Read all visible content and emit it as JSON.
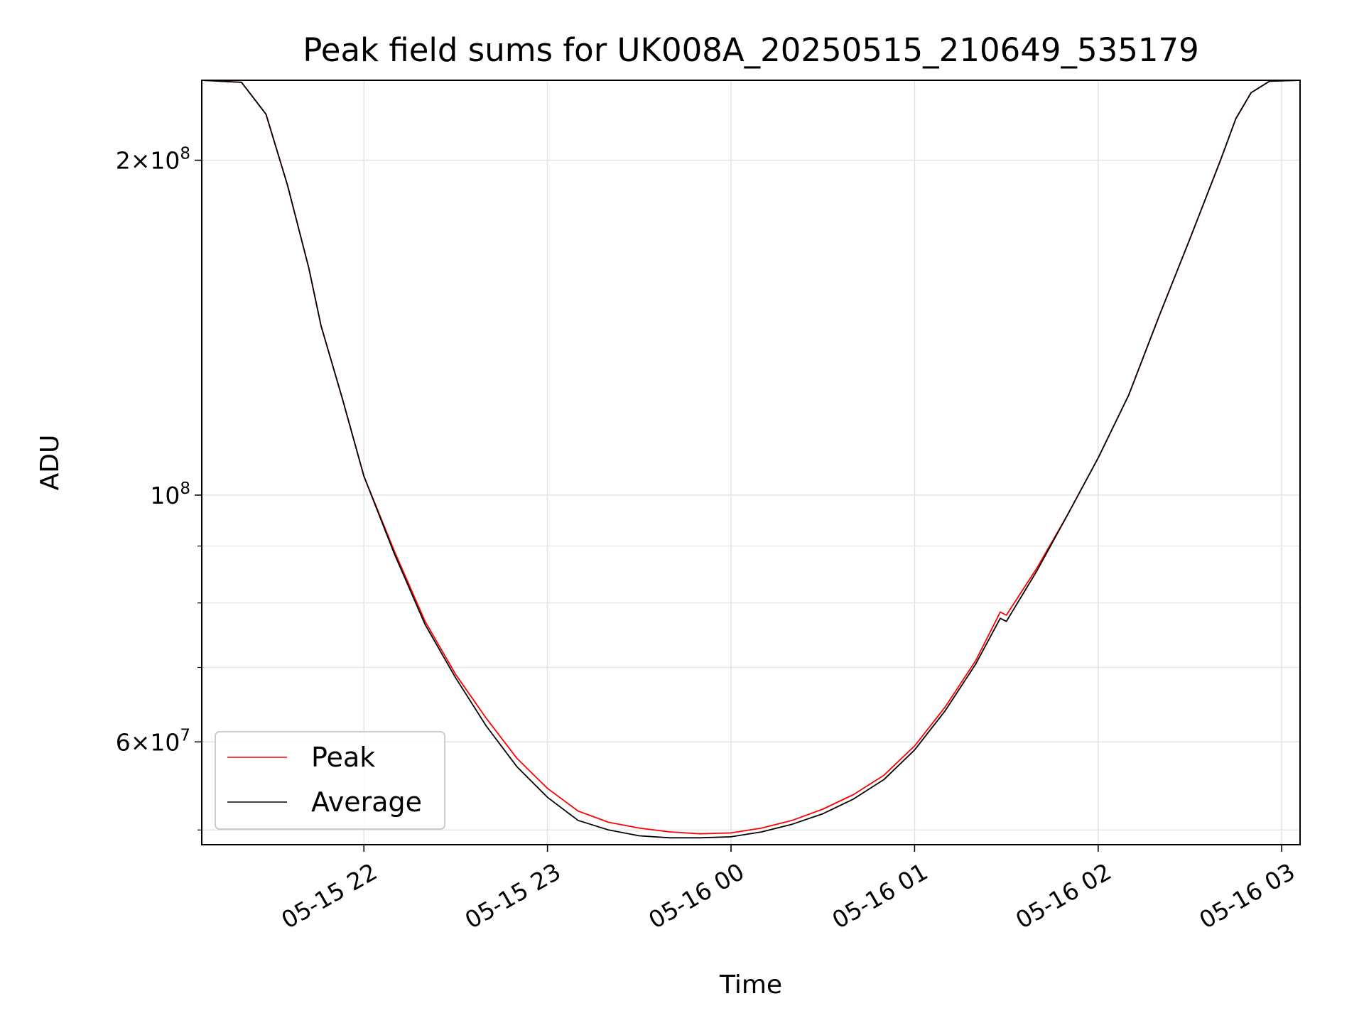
{
  "chart_data": {
    "type": "line",
    "title": "Peak field sums for UK008A_20250515_210649_535179",
    "xlabel": "Time",
    "ylabel": "ADU",
    "y_scale": "log",
    "grid": true,
    "legend_position": "lower-left",
    "xlim": [
      "2025-05-15 21:07",
      "2025-05-16 03:06"
    ],
    "ylim": [
      48500000,
      236000000
    ],
    "x_ticks": [
      {
        "value": "2025-05-15 22:00",
        "label": "05-15 22"
      },
      {
        "value": "2025-05-15 23:00",
        "label": "05-15 23"
      },
      {
        "value": "2025-05-16 00:00",
        "label": "05-16 00"
      },
      {
        "value": "2025-05-16 01:00",
        "label": "05-16 01"
      },
      {
        "value": "2025-05-16 02:00",
        "label": "05-16 02"
      },
      {
        "value": "2025-05-16 03:00",
        "label": "05-16 03"
      }
    ],
    "y_major_ticks": [
      {
        "value": 200000000,
        "mantissa": "2",
        "exponent": "8"
      },
      {
        "value": 100000000,
        "mantissa": "",
        "exponent": "8"
      },
      {
        "value": 60000000,
        "mantissa": "6",
        "exponent": "7"
      }
    ],
    "y_minor_ticks": [
      50000000,
      70000000,
      80000000,
      90000000
    ],
    "series": [
      {
        "name": "Peak",
        "color": "#ff0000",
        "x": [
          "2025-05-15 21:07",
          "2025-05-15 21:20",
          "2025-05-15 21:28",
          "2025-05-15 21:35",
          "2025-05-15 21:42",
          "2025-05-15 21:46",
          "2025-05-15 21:53",
          "2025-05-15 22:00",
          "2025-05-15 22:10",
          "2025-05-15 22:20",
          "2025-05-15 22:30",
          "2025-05-15 22:40",
          "2025-05-15 22:50",
          "2025-05-15 23:00",
          "2025-05-15 23:10",
          "2025-05-15 23:20",
          "2025-05-15 23:30",
          "2025-05-15 23:40",
          "2025-05-15 23:50",
          "2025-05-16 00:00",
          "2025-05-16 00:10",
          "2025-05-16 00:20",
          "2025-05-16 00:30",
          "2025-05-16 00:40",
          "2025-05-16 00:50",
          "2025-05-16 01:00",
          "2025-05-16 01:10",
          "2025-05-16 01:20",
          "2025-05-16 01:28",
          "2025-05-16 01:30",
          "2025-05-16 01:40",
          "2025-05-16 01:50",
          "2025-05-16 02:00",
          "2025-05-16 02:10",
          "2025-05-16 02:20",
          "2025-05-16 02:30",
          "2025-05-16 02:40",
          "2025-05-16 02:45",
          "2025-05-16 02:50",
          "2025-05-16 02:56",
          "2025-05-16 03:06"
        ],
        "values": [
          236000000,
          235000000,
          220000000,
          190000000,
          160000000,
          142000000,
          122000000,
          104000000,
          89000000,
          77000000,
          69000000,
          63000000,
          58000000,
          54500000,
          52000000,
          50800000,
          50200000,
          49800000,
          49600000,
          49700000,
          50200000,
          51000000,
          52200000,
          53800000,
          56000000,
          59500000,
          64500000,
          71000000,
          78500000,
          78000000,
          86000000,
          96000000,
          108000000,
          123000000,
          145000000,
          170000000,
          200000000,
          218000000,
          230000000,
          235500000,
          236000000
        ]
      },
      {
        "name": "Average",
        "color": "#000000",
        "x": [
          "2025-05-15 21:07",
          "2025-05-15 21:20",
          "2025-05-15 21:28",
          "2025-05-15 21:35",
          "2025-05-15 21:42",
          "2025-05-15 21:46",
          "2025-05-15 21:53",
          "2025-05-15 22:00",
          "2025-05-15 22:10",
          "2025-05-15 22:20",
          "2025-05-15 22:30",
          "2025-05-15 22:40",
          "2025-05-15 22:50",
          "2025-05-15 23:00",
          "2025-05-15 23:10",
          "2025-05-15 23:20",
          "2025-05-15 23:30",
          "2025-05-15 23:40",
          "2025-05-15 23:50",
          "2025-05-16 00:00",
          "2025-05-16 00:10",
          "2025-05-16 00:20",
          "2025-05-16 00:30",
          "2025-05-16 00:40",
          "2025-05-16 00:50",
          "2025-05-16 01:00",
          "2025-05-16 01:10",
          "2025-05-16 01:20",
          "2025-05-16 01:28",
          "2025-05-16 01:30",
          "2025-05-16 01:40",
          "2025-05-16 01:50",
          "2025-05-16 02:00",
          "2025-05-16 02:10",
          "2025-05-16 02:20",
          "2025-05-16 02:30",
          "2025-05-16 02:40",
          "2025-05-16 02:45",
          "2025-05-16 02:50",
          "2025-05-16 02:56",
          "2025-05-16 03:06"
        ],
        "values": [
          236000000,
          235000000,
          220000000,
          190000000,
          160000000,
          142000000,
          122000000,
          104000000,
          88500000,
          76500000,
          68500000,
          62000000,
          57000000,
          53500000,
          51000000,
          50000000,
          49400000,
          49200000,
          49200000,
          49300000,
          49800000,
          50600000,
          51700000,
          53300000,
          55500000,
          59000000,
          64000000,
          70500000,
          77500000,
          77000000,
          85500000,
          96000000,
          108000000,
          123000000,
          145000000,
          170000000,
          200000000,
          218000000,
          230000000,
          235500000,
          236000000
        ]
      }
    ]
  }
}
